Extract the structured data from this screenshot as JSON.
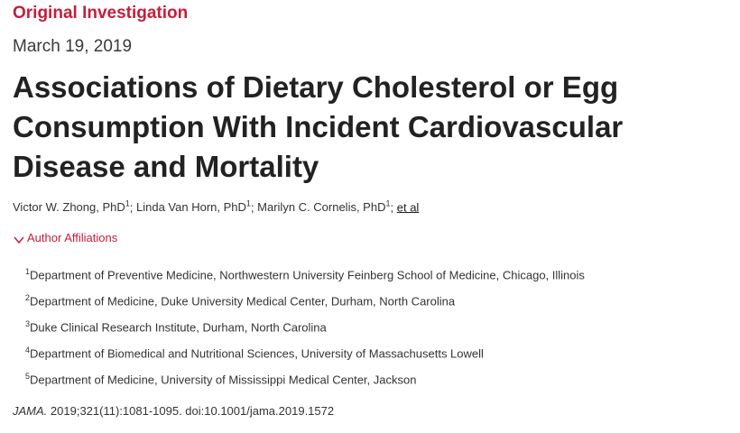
{
  "article": {
    "type_label": "Original Investigation",
    "date": "March 19, 2019",
    "title": "Associations of Dietary Cholesterol or Egg Consumption With Incident Cardiovascular Disease and Mortality"
  },
  "authors": [
    {
      "name": "Victor W. Zhong, PhD",
      "sup": "1",
      "sep": "; "
    },
    {
      "name": "Linda Van Horn, PhD",
      "sup": "1",
      "sep": "; "
    },
    {
      "name": "Marilyn C. Cornelis, PhD",
      "sup": "1",
      "sep": "; "
    }
  ],
  "et_al_label": "et al",
  "affiliations_toggle": {
    "label": "Author Affiliations",
    "icon": "chevron-down-icon"
  },
  "affiliations": [
    {
      "num": "1",
      "text": "Department of Preventive Medicine, Northwestern University Feinberg School of Medicine, Chicago, Illinois"
    },
    {
      "num": "2",
      "text": "Department of Medicine, Duke University Medical Center, Durham, North Carolina"
    },
    {
      "num": "3",
      "text": "Duke Clinical Research Institute, Durham, North Carolina"
    },
    {
      "num": "4",
      "text": "Department of Biomedical and Nutritional Sciences, University of Massachusetts Lowell"
    },
    {
      "num": "5",
      "text": "Department of Medicine, University of Mississippi Medical Center, Jackson"
    }
  ],
  "citation": {
    "journal": "JAMA.",
    "details": " 2019;321(11):1081-1095. doi:",
    "doi": "10.1001/jama.2019.1572"
  },
  "colors": {
    "accent": "#c41e3a",
    "text": "#222222"
  }
}
